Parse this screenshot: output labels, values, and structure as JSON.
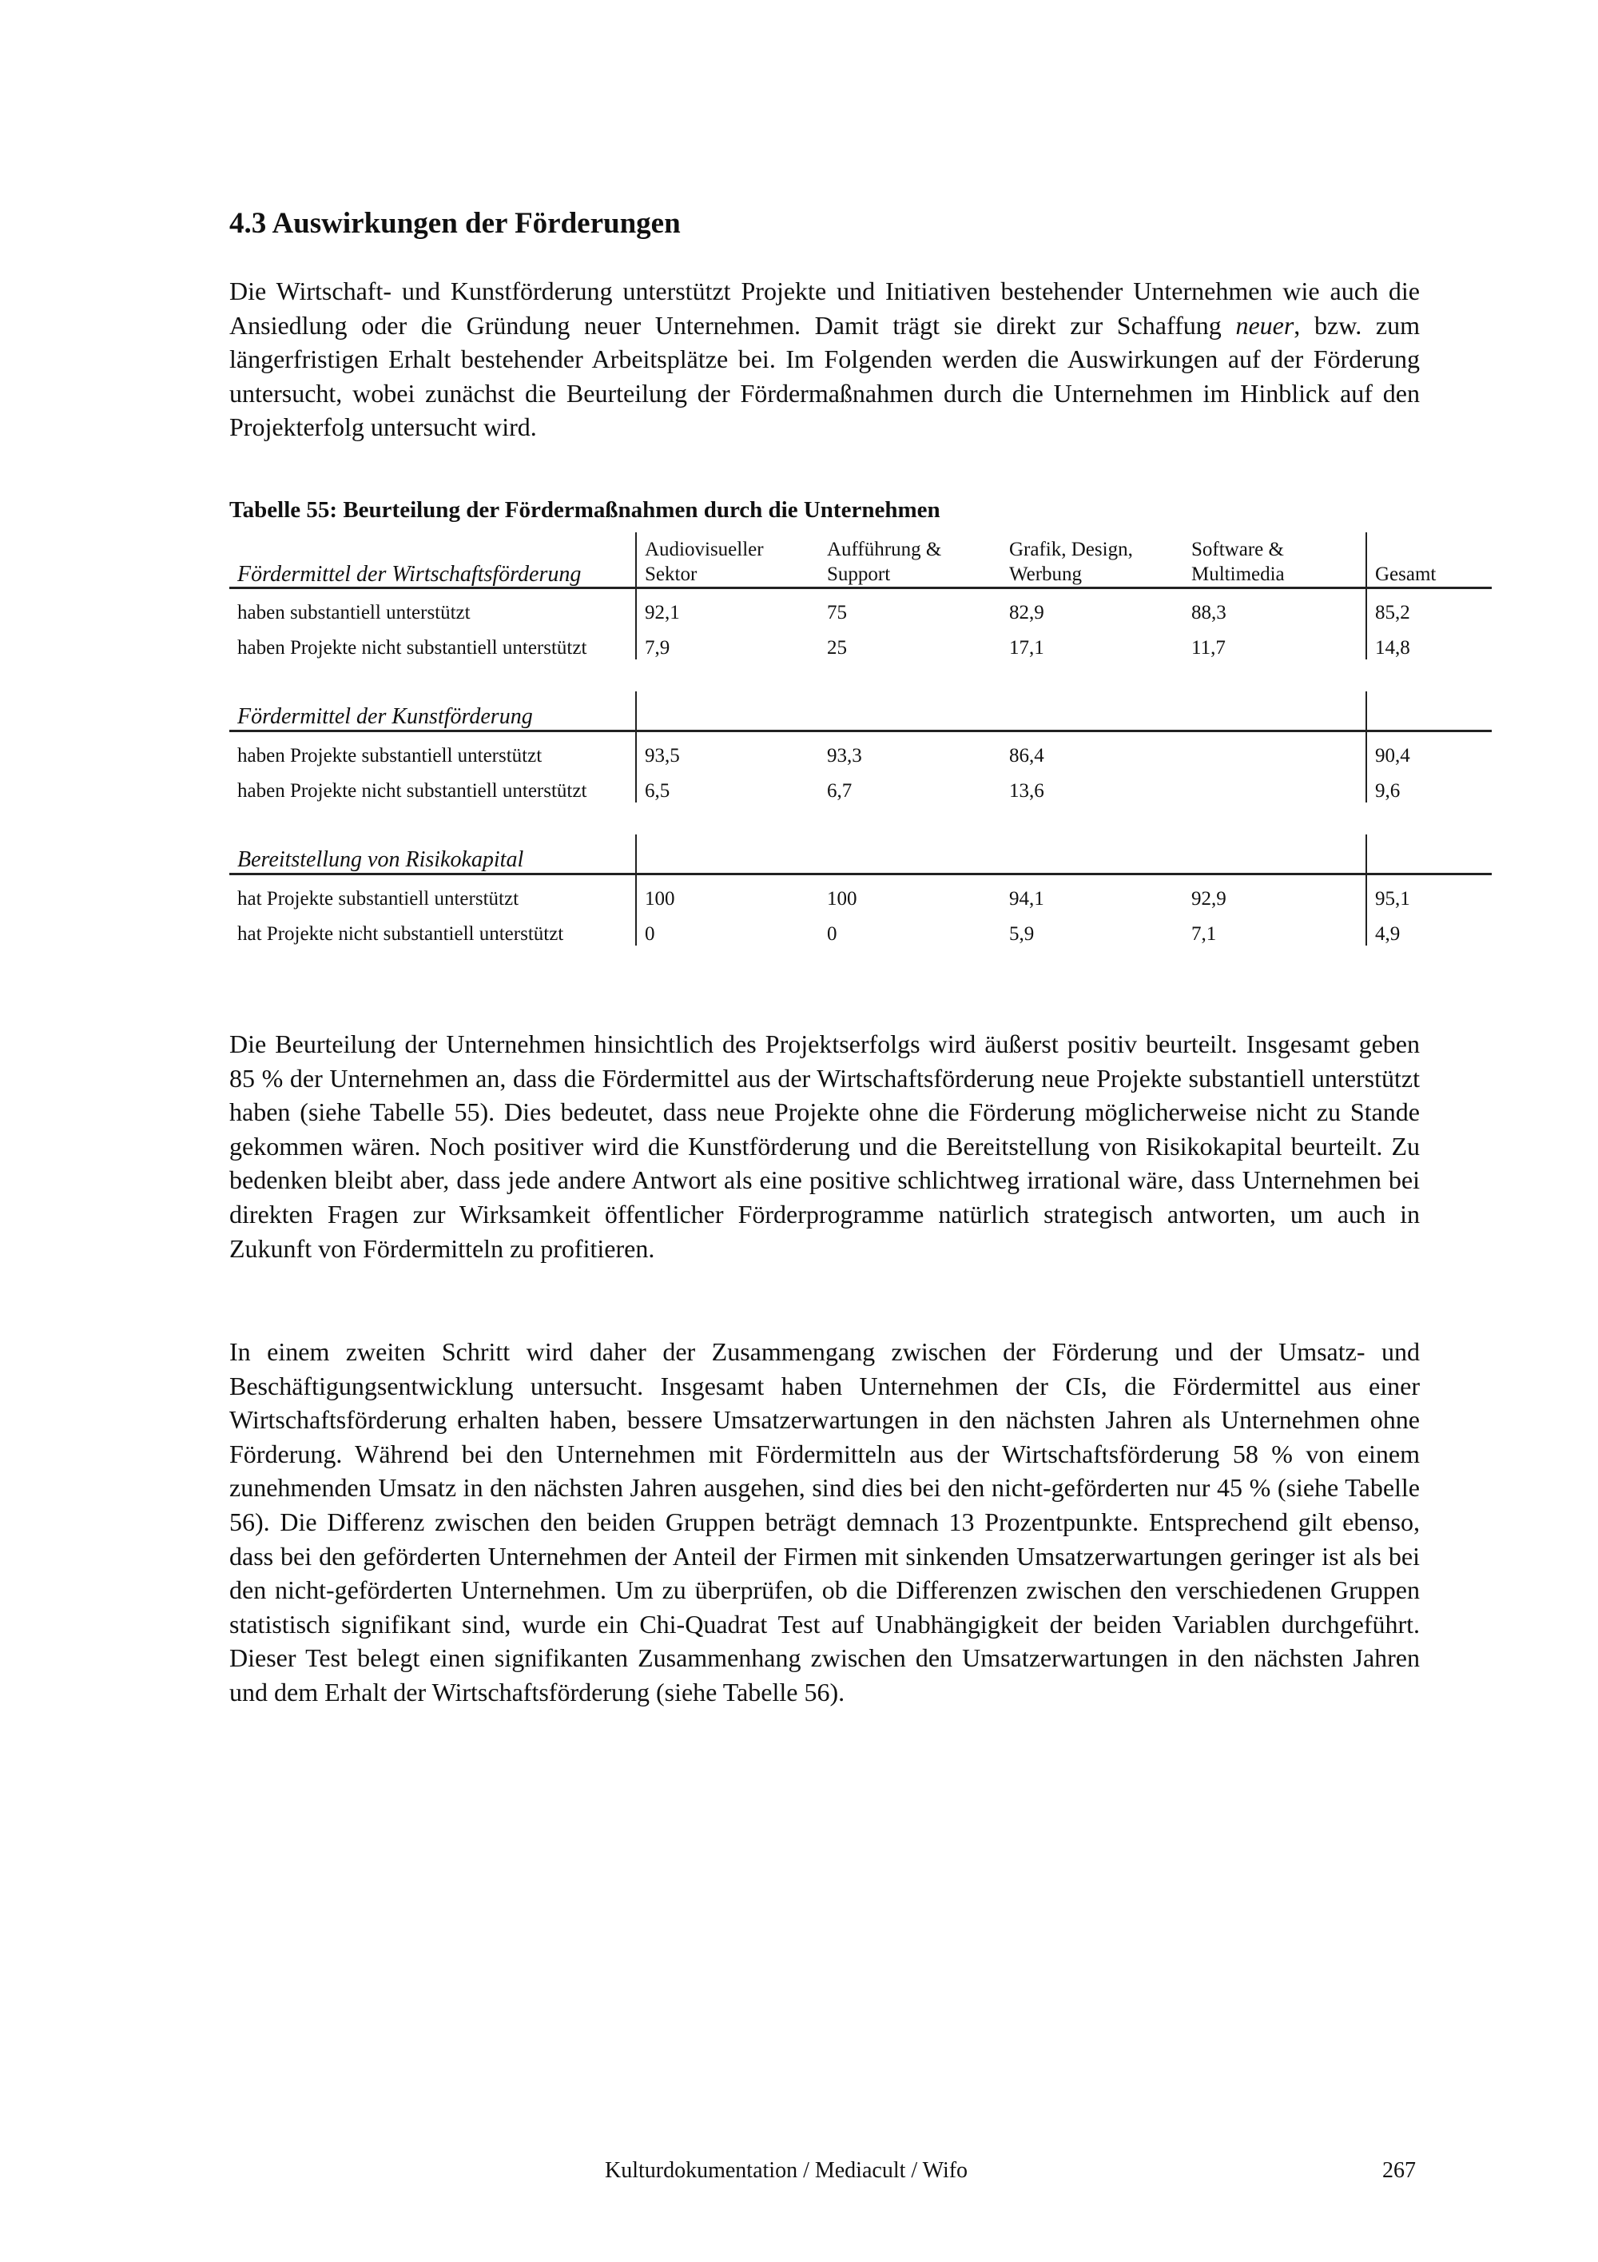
{
  "heading": "4.3 Auswirkungen der Förderungen",
  "intro": {
    "before_italic": "Die Wirtschaft- und Kunstförderung unterstützt Projekte und Initiativen bestehender Unternehmen wie auch die Ansiedlung oder die Gründung neuer Unternehmen. Damit trägt sie direkt zur Schaffung ",
    "italic": "neuer",
    "after_italic": ", bzw. zum längerfristigen Erhalt bestehender Arbeitsplätze bei. Im Folgenden werden die Auswirkungen auf der Förderung untersucht, wobei zunächst die Beurteilung der Fördermaßnahmen durch die Unternehmen im Hinblick auf den Projekterfolg untersucht wird."
  },
  "table": {
    "caption": "Tabelle 55: Beurteilung der Fördermaßnahmen durch die Unternehmen",
    "columns": [
      "Audiovisueller Sektor",
      "Aufführung & Support",
      "Grafik, Design, Werbung",
      "Software & Multimedia",
      "Gesamt"
    ],
    "sections": [
      {
        "title": "Fördermittel der Wirtschaftsförderung",
        "rows": [
          {
            "label": "haben substantiell unterstützt",
            "values": [
              "92,1",
              "75",
              "82,9",
              "88,3",
              "85,2"
            ]
          },
          {
            "label": "haben Projekte nicht substantiell unterstützt",
            "values": [
              "7,9",
              "25",
              "17,1",
              "11,7",
              "14,8"
            ]
          }
        ]
      },
      {
        "title": "Fördermittel der Kunstförderung",
        "rows": [
          {
            "label": "haben Projekte substantiell unterstützt",
            "values": [
              "93,5",
              "93,3",
              "86,4",
              "",
              "90,4"
            ]
          },
          {
            "label": "haben Projekte nicht substantiell unterstützt",
            "values": [
              "6,5",
              "6,7",
              "13,6",
              "",
              "9,6"
            ]
          }
        ]
      },
      {
        "title": "Bereitstellung von Risikokapital",
        "rows": [
          {
            "label": "hat Projekte substantiell unterstützt",
            "values": [
              "100",
              "100",
              "94,1",
              "92,9",
              "95,1"
            ]
          },
          {
            "label": "hat Projekte nicht substantiell unterstützt",
            "values": [
              "0",
              "0",
              "5,9",
              "7,1",
              "4,9"
            ]
          }
        ]
      }
    ]
  },
  "paragraph2": "Die Beurteilung der Unternehmen hinsichtlich des Projektserfolgs wird äußerst positiv beurteilt. Insgesamt geben 85 % der Unternehmen an, dass die Fördermittel aus der Wirtschaftsförderung neue Projekte substantiell unterstützt haben (siehe Tabelle 55). Dies bedeutet, dass neue Projekte ohne die Förderung möglicherweise nicht zu Stande gekommen wären. Noch positiver wird die Kunstförderung und die Bereitstellung von Risikokapital beurteilt. Zu bedenken bleibt aber, dass jede andere Antwort als eine positive schlichtweg irrational wäre, dass Unternehmen bei direkten Fragen zur Wirksamkeit öffentlicher Förderprogramme natürlich strategisch antworten, um auch in Zukunft von Fördermitteln zu profitieren.",
  "paragraph3": "In einem zweiten Schritt wird daher der Zusammengang zwischen der Förderung und der Umsatz- und Beschäftigungsentwicklung untersucht. Insgesamt haben Unternehmen der CIs, die Fördermittel aus einer Wirtschaftsförderung erhalten haben, bessere Umsatzerwartungen in den nächsten Jahren als Unternehmen ohne Förderung. Während bei den Unternehmen mit Fördermitteln aus der Wirtschaftsförderung 58 % von einem zunehmenden Umsatz in den nächsten Jahren ausgehen, sind dies bei den nicht-geförderten nur 45 % (siehe Tabelle 56). Die Differenz zwischen den beiden Gruppen beträgt demnach 13 Prozentpunkte. Entsprechend gilt ebenso, dass bei den geförderten Unternehmen der Anteil der Firmen mit sinkenden Umsatzerwartungen geringer ist als bei den nicht-geförderten Unternehmen. Um zu überprüfen, ob die Differenzen zwischen den verschiedenen Gruppen statistisch signifikant sind, wurde ein Chi-Quadrat Test auf Unabhängigkeit der beiden Variablen durchgeführt. Dieser Test belegt einen signifikanten Zusammenhang zwischen den Umsatzerwartungen in den nächsten Jahren und dem Erhalt der Wirtschaftsförderung (siehe Tabelle 56).",
  "footer": {
    "source": "Kulturdokumentation / Mediacult / Wifo",
    "page_number": "267"
  }
}
